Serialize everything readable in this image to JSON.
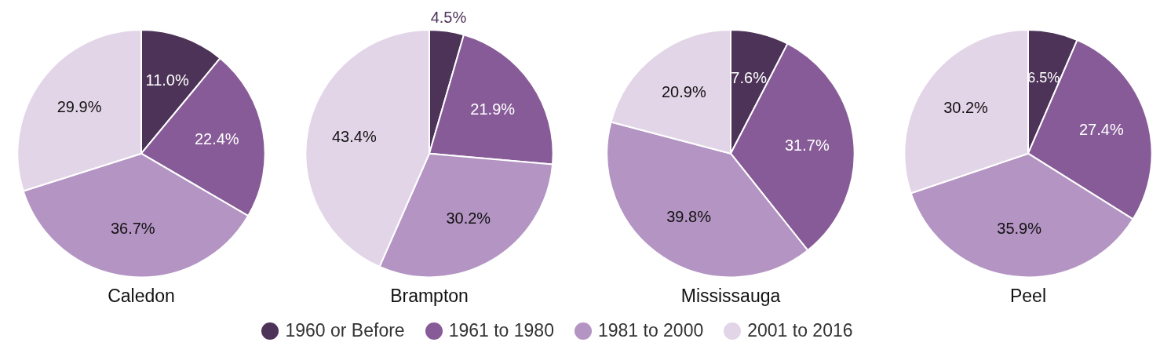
{
  "chart_data": [
    {
      "type": "pie",
      "title": "Caledon",
      "categories": [
        "1960 or Before",
        "1961 to 1980",
        "1981 to 2000",
        "2001 to 2016"
      ],
      "values": [
        11.0,
        22.4,
        36.7,
        29.9
      ],
      "colors": [
        "#4d3358",
        "#875b97",
        "#b394c3",
        "#e3d5e8"
      ],
      "value_labels": [
        "11.0%",
        "22.4%",
        "36.7%",
        "29.9%"
      ],
      "legend": "bottom"
    },
    {
      "type": "pie",
      "title": "Brampton",
      "categories": [
        null,
        null,
        null,
        null
      ],
      "values": [
        4.5,
        21.9,
        30.2,
        43.4
      ],
      "colors": [
        "#4d3358",
        "#875b97",
        "#b394c3",
        "#e3d5e8"
      ],
      "value_labels": [
        "4.5%",
        "21.9%",
        "30.2%",
        "43.4%"
      ]
    },
    {
      "type": "pie",
      "title": "Mississauga",
      "categories": [
        null,
        null,
        null,
        null
      ],
      "values": [
        7.6,
        31.7,
        39.8,
        20.9
      ],
      "colors": [
        "#4d3358",
        "#875b97",
        "#b394c3",
        "#e3d5e8"
      ],
      "value_labels": [
        "7.6%",
        "31.7%",
        "39.8%",
        "20.9%"
      ]
    },
    {
      "type": "pie",
      "title": "Peel",
      "categories": [
        null,
        null,
        null,
        null
      ],
      "values": [
        6.5,
        27.4,
        35.9,
        30.2
      ],
      "colors": [
        "#4d3358",
        "#875b97",
        "#b394c3",
        "#e3d5e8"
      ],
      "value_labels": [
        "6.5%",
        "27.4%",
        "35.9%",
        "30.2%"
      ]
    }
  ]
}
